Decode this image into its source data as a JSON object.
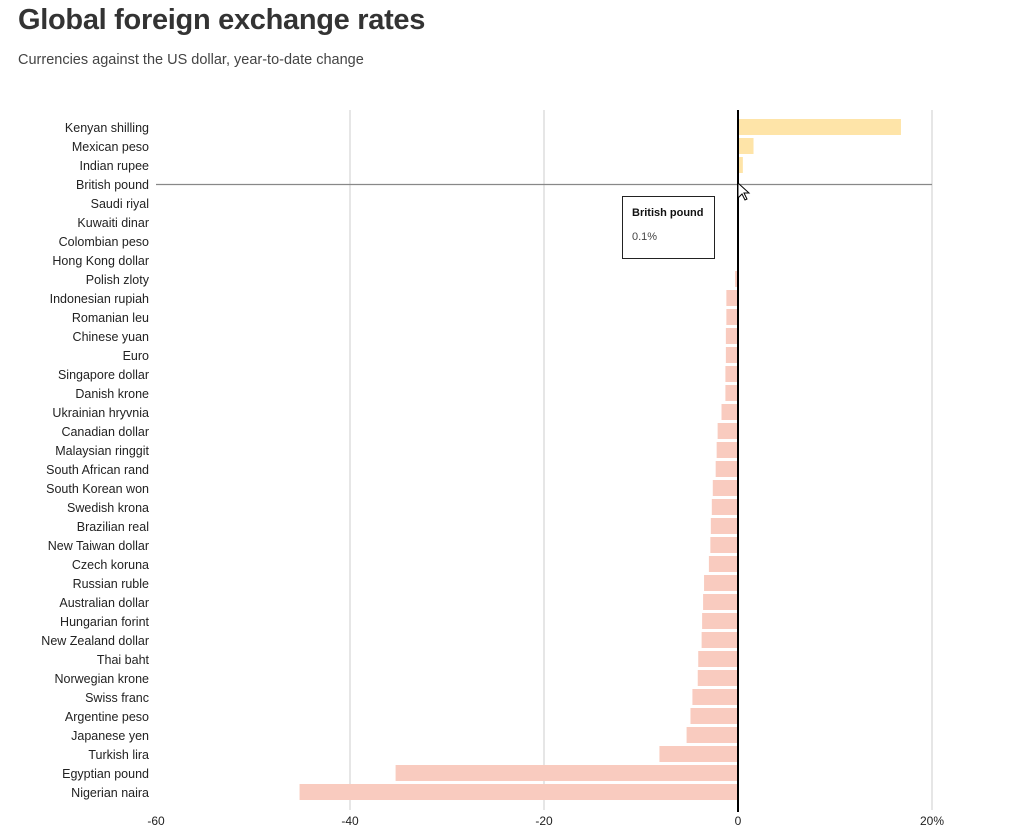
{
  "title": "Global foreign exchange rates",
  "subtitle": "Currencies against the US dollar, year-to-date change",
  "tooltip": {
    "label": "British pound",
    "value": "0.1%"
  },
  "colors": {
    "positive": "#fee4a8",
    "negative": "#f9cbbf",
    "zero_line": "#000000",
    "grid": "#cccccc"
  },
  "chart_data": {
    "type": "bar",
    "orientation": "horizontal",
    "xlim": [
      -60,
      20
    ],
    "x_ticks": [
      -60,
      -40,
      -20,
      0,
      20
    ],
    "x_tick_labels": [
      "-60",
      "-40",
      "-20",
      "0",
      "20%"
    ],
    "grid": true,
    "highlighted": "British pound",
    "categories": [
      "Kenyan shilling",
      "Mexican peso",
      "Indian rupee",
      "British pound",
      "Saudi riyal",
      "Kuwaiti dinar",
      "Colombian peso",
      "Hong Kong dollar",
      "Polish zloty",
      "Indonesian rupiah",
      "Romanian leu",
      "Chinese yuan",
      "Euro",
      "Singapore dollar",
      "Danish krone",
      "Ukrainian hryvnia",
      "Canadian dollar",
      "Malaysian ringgit",
      "South African rand",
      "South Korean won",
      "Swedish krona",
      "Brazilian real",
      "New Taiwan dollar",
      "Czech koruna",
      "Russian ruble",
      "Australian dollar",
      "Hungarian forint",
      "New Zealand dollar",
      "Thai baht",
      "Norwegian krone",
      "Swiss franc",
      "Argentine peso",
      "Japanese yen",
      "Turkish lira",
      "Egyptian pound",
      "Nigerian naira"
    ],
    "values": [
      16.8,
      1.6,
      0.5,
      0.1,
      0.0,
      0.0,
      0.0,
      0.0,
      -0.3,
      -1.2,
      -1.2,
      -1.25,
      -1.25,
      -1.3,
      -1.3,
      -1.7,
      -2.1,
      -2.2,
      -2.3,
      -2.6,
      -2.7,
      -2.8,
      -2.85,
      -3.0,
      -3.5,
      -3.6,
      -3.7,
      -3.75,
      -4.1,
      -4.15,
      -4.7,
      -4.9,
      -5.3,
      -8.1,
      -35.3,
      -45.2
    ]
  }
}
